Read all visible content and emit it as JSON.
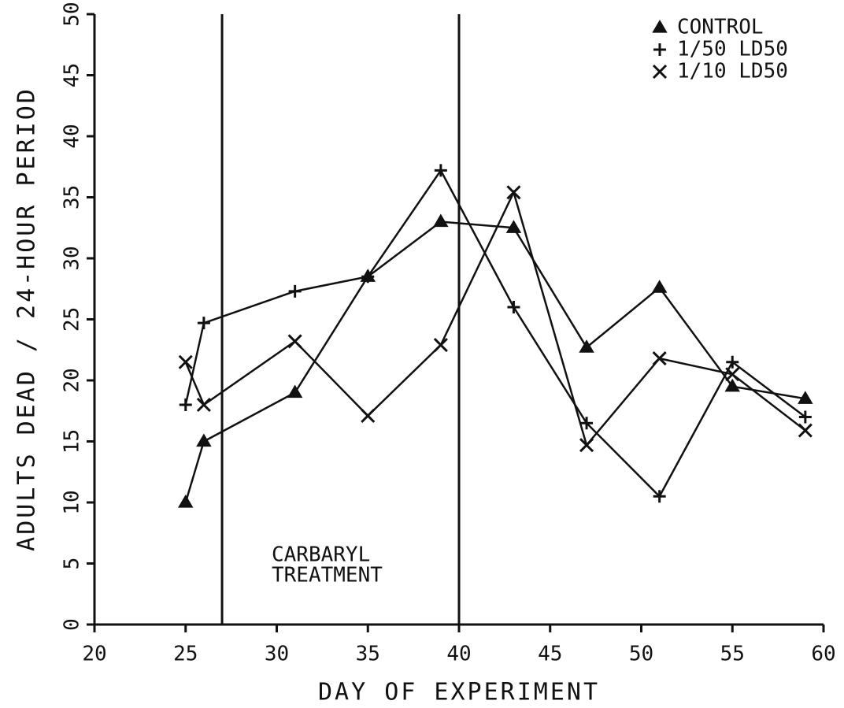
{
  "chart_data": {
    "type": "line",
    "xlabel": "DAY OF EXPERIMENT",
    "ylabel": "ADULTS DEAD / 24-HOUR PERIOD",
    "x": [
      25,
      26,
      31,
      35,
      39,
      43,
      47,
      51,
      55,
      59
    ],
    "series": [
      {
        "name": "CONTROL",
        "marker": "triangle",
        "color": "#111111",
        "values": [
          10,
          15,
          19,
          28.5,
          33,
          32.5,
          22.7,
          27.6,
          19.5,
          18.5
        ]
      },
      {
        "name": "1/50 LD50",
        "marker": "plus",
        "color": "#111111",
        "values": [
          18,
          24.7,
          27.3,
          28.5,
          37.2,
          26,
          16.5,
          10.5,
          21.5,
          17
        ]
      },
      {
        "name": "1/10 LD50",
        "marker": "x",
        "color": "#111111",
        "values": [
          21.5,
          18,
          23.2,
          17.1,
          22.9,
          35.4,
          14.7,
          21.8,
          20.5,
          15.9
        ]
      }
    ],
    "xlim": [
      20,
      60
    ],
    "xticks": [
      20,
      25,
      30,
      35,
      40,
      45,
      50,
      55,
      60
    ],
    "ylim": [
      0,
      50
    ],
    "yticks": [
      0,
      5,
      10,
      15,
      20,
      25,
      30,
      35,
      40,
      45,
      50
    ],
    "reference_lines_x": [
      27,
      40
    ],
    "annotation": [
      "CARBARYL",
      "TREATMENT"
    ],
    "legend": "upper right"
  }
}
